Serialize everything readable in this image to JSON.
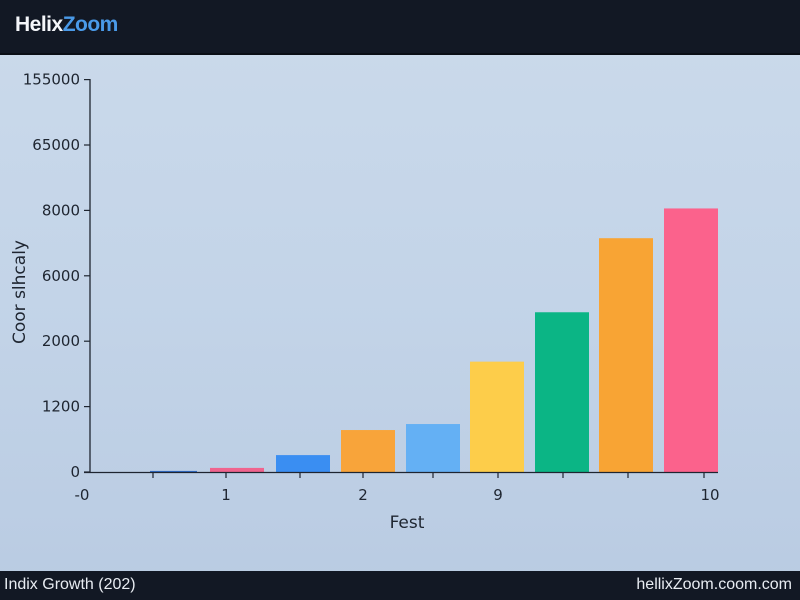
{
  "header": {
    "logo_part1": "Helix",
    "logo_part2": "Zoom"
  },
  "footer": {
    "left_text": "Indix Growth (202)",
    "right_text": "hellixZoom.coom.com"
  },
  "colors": {
    "header_bg": "#121824",
    "logo_accent": "#4a9ae8"
  },
  "chart_data": {
    "type": "bar",
    "title": "",
    "xlabel": "Fest",
    "ylabel": "Coor slhcaly",
    "y_ticks": [
      0,
      1200,
      2000,
      6000,
      8000,
      65000,
      155000
    ],
    "y_tick_labels": [
      "0",
      "1200",
      "2000",
      "6000",
      "8000",
      "65000",
      "155000"
    ],
    "y_scale": "non-uniform (ticks evenly spaced)",
    "x_tick_labels": [
      "-0",
      "",
      "1",
      "",
      "2",
      "",
      "9",
      "",
      "",
      "10"
    ],
    "grid": false,
    "legend": "none",
    "values": [
      20,
      75,
      310,
      770,
      880,
      1750,
      3770,
      7150,
      9700
    ],
    "bar_colors": [
      "#2f6cc8",
      "#f0648e",
      "#3a8ef2",
      "#f8a43a",
      "#64b0f4",
      "#fdcd4a",
      "#0bb585",
      "#f8a434",
      "#fb628c"
    ]
  }
}
